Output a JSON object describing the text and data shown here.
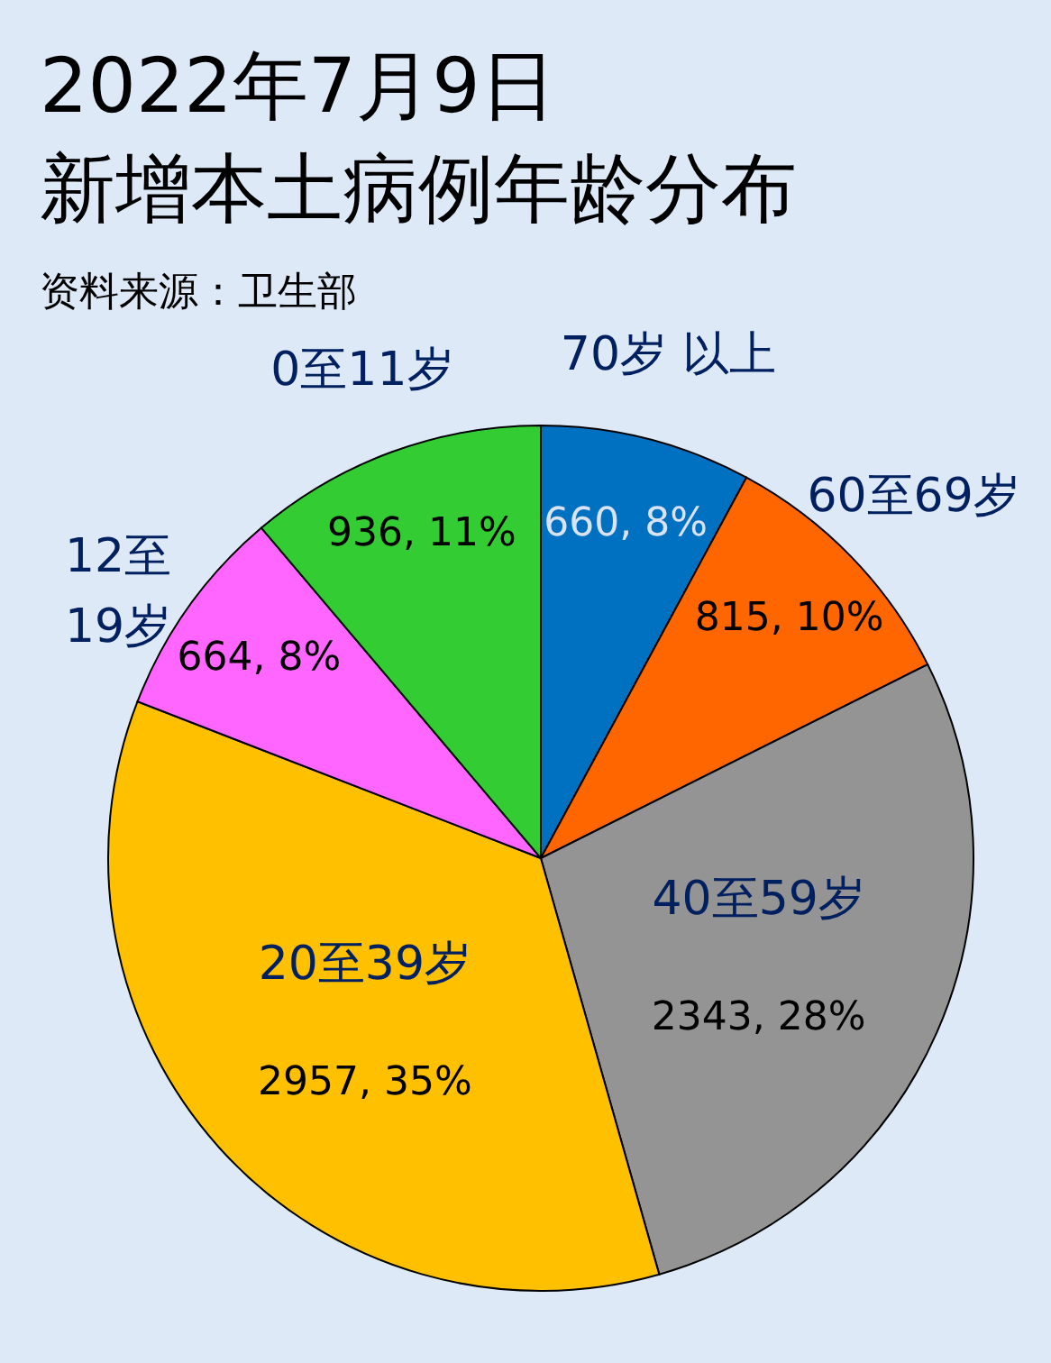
{
  "chart_data": {
    "type": "pie",
    "title": "2022年7月9日",
    "subtitle": "新增本土病例年龄分布",
    "annotations": [
      "资料来源：卫生部"
    ],
    "categories": [
      "70岁 以上",
      "60至69岁",
      "40至59岁",
      "20至39岁",
      "12至19岁",
      "0至11岁"
    ],
    "values": [
      660,
      815,
      2343,
      2957,
      664,
      936
    ],
    "colors": [
      "#0070c0",
      "#ff6600",
      "#949494",
      "#ffc000",
      "#ff66ff",
      "#33cc33"
    ],
    "value_labels": [
      "660, 8%",
      "815, 10%",
      "2343, 28%",
      "2957, 35%",
      "664, 8%",
      "936, 11%"
    ]
  }
}
